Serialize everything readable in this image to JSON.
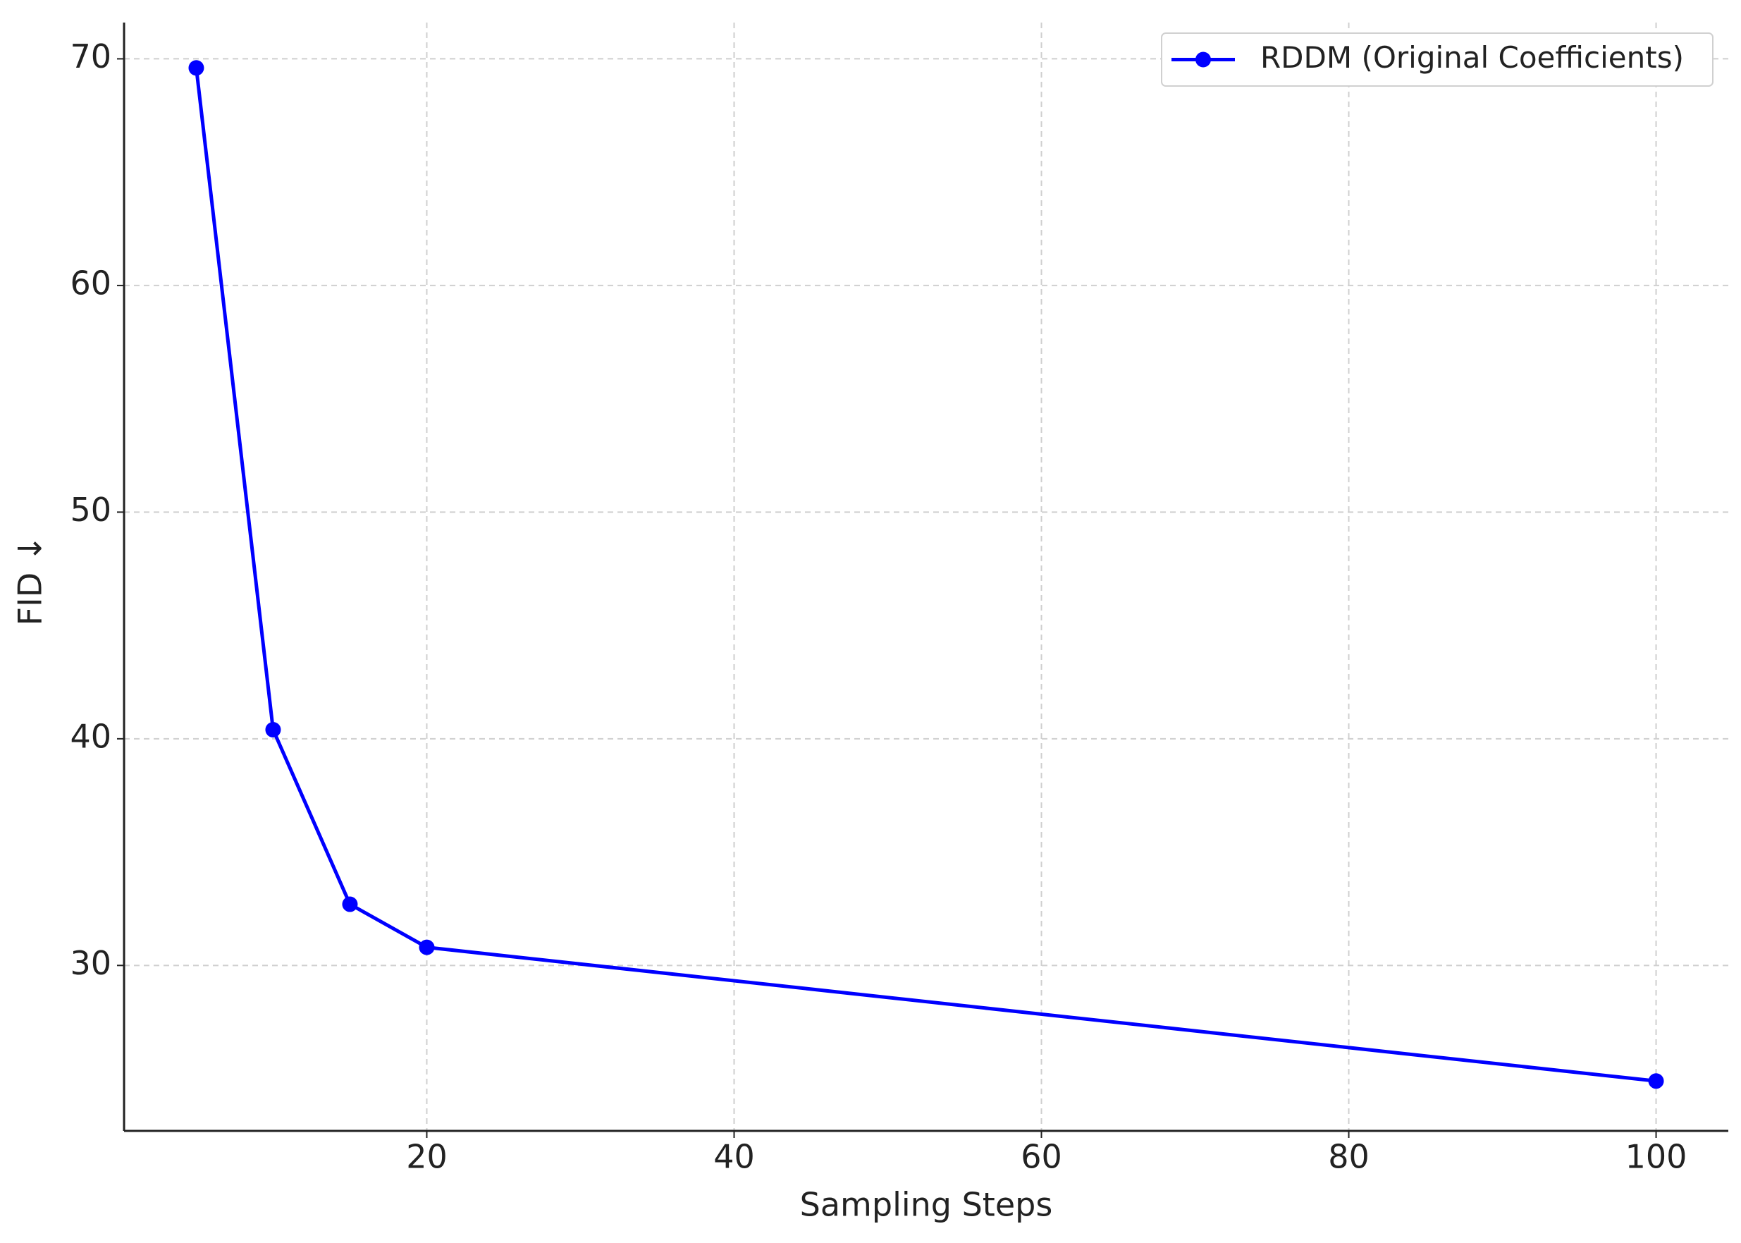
{
  "chart_data": {
    "type": "line",
    "x_label": "Sampling Steps",
    "y_label": "FID ↓",
    "x": [
      5,
      10,
      15,
      20,
      100
    ],
    "series": [
      {
        "name": "RDDM (Original Coefficients)",
        "color": "#0000ff",
        "values": [
          69.6,
          40.4,
          32.7,
          30.8,
          24.9
        ]
      }
    ],
    "xlim": [
      0.3,
      104.7
    ],
    "ylim": [
      22.7,
      71.6
    ],
    "xticks": [
      20,
      40,
      60,
      80,
      100
    ],
    "yticks": [
      30,
      40,
      50,
      60,
      70
    ],
    "grid": true,
    "legend": "upper right"
  }
}
